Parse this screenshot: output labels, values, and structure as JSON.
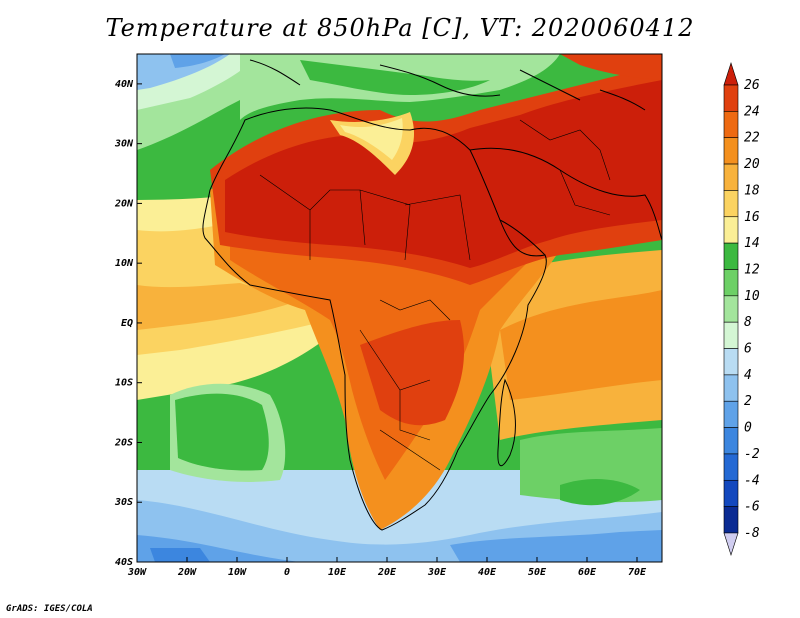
{
  "title": "Temperature at 850hPa [C], VT: 2020060412",
  "credit": "GrADS: IGES/COLA",
  "map": {
    "projection": "lat-lon",
    "lon_range": [
      -30,
      75
    ],
    "lat_range": [
      -40,
      45
    ],
    "x_ticks": [
      "30W",
      "20W",
      "10W",
      "0",
      "10E",
      "20E",
      "30E",
      "40E",
      "50E",
      "60E",
      "70E"
    ],
    "y_ticks": [
      "40N",
      "30N",
      "20N",
      "10N",
      "EQ",
      "10S",
      "20S",
      "30S",
      "40S"
    ],
    "y_tick_values": [
      40,
      30,
      20,
      10,
      0,
      -10,
      -20,
      -30,
      -40
    ],
    "x_tick_values": [
      -30,
      -20,
      -10,
      0,
      10,
      20,
      30,
      40,
      50,
      60,
      70
    ]
  },
  "colorbar": {
    "labels": [
      "26",
      "24",
      "22",
      "20",
      "18",
      "16",
      "14",
      "12",
      "10",
      "8",
      "6",
      "4",
      "2",
      "0",
      "-2",
      "-4",
      "-6",
      "-8"
    ],
    "colors": [
      "#cc1f0a",
      "#e0400f",
      "#ee6a12",
      "#f4901e",
      "#f8b23c",
      "#fbd361",
      "#fbef96",
      "#3cb940",
      "#6dd066",
      "#a3e59c",
      "#d4f6d4",
      "#b9dcf3",
      "#8ec2ef",
      "#5fa2e8",
      "#3c86df",
      "#2469d4",
      "#1348be",
      "#0b2b93",
      "#081a68"
    ],
    "cap_bottom_color": "#d0cdf0"
  },
  "regions": {
    "north_africa_heat": "26+",
    "arabia_heat": "26+",
    "sahel": "24",
    "atlantic_subtropics": "12-14",
    "south_atlantic_high": "10-12",
    "southern_ocean": "0-6"
  }
}
